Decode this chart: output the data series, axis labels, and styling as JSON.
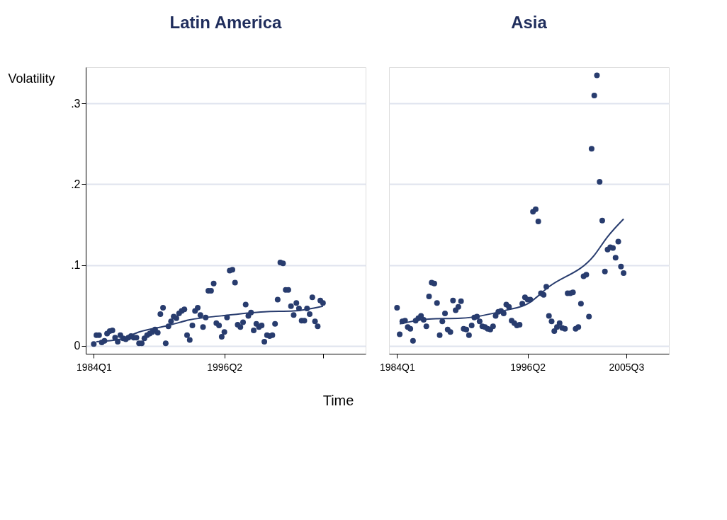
{
  "chart_data": [
    {
      "type": "scatter",
      "title": "Latin America",
      "ylabel": "Volatility",
      "xlabel": "Time",
      "marker": "circle",
      "grid": "y",
      "xlim": [
        "1983-04",
        "2009-07"
      ],
      "xticks": [
        {
          "value": "1984-01",
          "label": "1984Q1"
        },
        {
          "value": "1996-04",
          "label": "1996Q2"
        },
        {
          "value": "2005-07",
          "label": null
        }
      ],
      "ylim": [
        -0.01,
        0.345
      ],
      "yticks": [
        0,
        {
          "value": 0.1,
          "label": ".1"
        },
        {
          "value": 0.2,
          "label": ".2"
        },
        {
          "value": 0.3,
          "label": ".3"
        }
      ],
      "series": [
        {
          "color": "#283c6e",
          "x": [
            "1984-01",
            "1984-04",
            "1984-07",
            "1984-10",
            "1985-01",
            "1985-04",
            "1985-07",
            "1985-10",
            "1986-01",
            "1986-04",
            "1986-07",
            "1986-10",
            "1987-01",
            "1987-04",
            "1987-07",
            "1987-10",
            "1988-01",
            "1988-04",
            "1988-07",
            "1988-10",
            "1989-01",
            "1989-04",
            "1989-07",
            "1989-10",
            "1990-01",
            "1990-04",
            "1990-07",
            "1990-10",
            "1991-01",
            "1991-04",
            "1991-07",
            "1991-10",
            "1992-01",
            "1992-04",
            "1992-07",
            "1992-10",
            "1993-01",
            "1993-04",
            "1993-07",
            "1993-10",
            "1994-01",
            "1994-04",
            "1994-07",
            "1994-10",
            "1995-01",
            "1995-04",
            "1995-07",
            "1995-10",
            "1996-01",
            "1996-04",
            "1996-07",
            "1996-10",
            "1997-01",
            "1997-04",
            "1997-07",
            "1997-10",
            "1998-01",
            "1998-04",
            "1998-07",
            "1998-10",
            "1999-01",
            "1999-04",
            "1999-07",
            "1999-10",
            "2000-01",
            "2000-04",
            "2000-07",
            "2000-10",
            "2001-01",
            "2001-04",
            "2001-07",
            "2001-10",
            "2002-01",
            "2002-04",
            "2002-07",
            "2002-10",
            "2003-01",
            "2003-04",
            "2003-07",
            "2003-10",
            "2004-01",
            "2004-04",
            "2004-07",
            "2004-10",
            "2005-01",
            "2005-04",
            "2005-07"
          ],
          "values": [
            0.002,
            0.013,
            0.013,
            0.004,
            0.006,
            0.015,
            0.018,
            0.019,
            0.01,
            0.005,
            0.013,
            0.009,
            0.008,
            0.01,
            0.012,
            0.01,
            0.01,
            0.003,
            0.003,
            0.009,
            0.013,
            0.015,
            0.017,
            0.02,
            0.016,
            0.039,
            0.047,
            0.003,
            0.024,
            0.03,
            0.036,
            0.034,
            0.04,
            0.043,
            0.045,
            0.013,
            0.007,
            0.025,
            0.043,
            0.047,
            0.038,
            0.023,
            0.035,
            0.068,
            0.068,
            0.077,
            0.028,
            0.025,
            0.011,
            0.017,
            0.035,
            0.093,
            0.094,
            0.078,
            0.026,
            0.023,
            0.029,
            0.051,
            0.037,
            0.041,
            0.019,
            0.027,
            0.023,
            0.025,
            0.005,
            0.013,
            0.012,
            0.013,
            0.027,
            0.057,
            0.103,
            0.102,
            0.069,
            0.069,
            0.049,
            0.038,
            0.053,
            0.046,
            0.031,
            0.031,
            0.046,
            0.039,
            0.06,
            0.03,
            0.024,
            0.056,
            0.053
          ]
        },
        {
          "type": "line",
          "marker": "none",
          "color": "#283c6e",
          "x": [
            "1984-04",
            "1986-07",
            "1988-04",
            "1991-01",
            "1993-01",
            "1996-01",
            "2000-01",
            "2002-10",
            "2005-07"
          ],
          "values": [
            0.005,
            0.008,
            0.017,
            0.025,
            0.032,
            0.037,
            0.042,
            0.043,
            0.049
          ]
        }
      ]
    },
    {
      "type": "scatter",
      "title": "Asia",
      "marker": "circle",
      "grid": "y",
      "tick_labels": "x",
      "xlim": [
        "1983-04",
        "2009-07"
      ],
      "xticks": [
        {
          "value": "1984-01",
          "label": "1984Q1"
        },
        {
          "value": "1996-04",
          "label": "1996Q2"
        },
        {
          "value": "2005-07",
          "label": "2005Q3"
        }
      ],
      "ylim": [
        -0.01,
        0.345
      ],
      "yticks": [
        {
          "value": 0,
          "label": null
        },
        {
          "value": 0.1,
          "label": null
        },
        {
          "value": 0.2,
          "label": null
        },
        {
          "value": 0.3,
          "label": null
        }
      ],
      "series": [
        {
          "color": "#283c6e",
          "x": [
            "1984-01",
            "1984-04",
            "1984-07",
            "1984-10",
            "1985-01",
            "1985-04",
            "1985-07",
            "1985-10",
            "1986-01",
            "1986-04",
            "1986-07",
            "1986-10",
            "1987-01",
            "1987-04",
            "1987-07",
            "1987-10",
            "1988-01",
            "1988-04",
            "1988-07",
            "1988-10",
            "1989-01",
            "1989-04",
            "1989-07",
            "1989-10",
            "1990-01",
            "1990-04",
            "1990-07",
            "1990-10",
            "1991-01",
            "1991-04",
            "1991-07",
            "1991-10",
            "1992-01",
            "1992-04",
            "1992-07",
            "1992-10",
            "1993-01",
            "1993-04",
            "1993-07",
            "1993-10",
            "1994-01",
            "1994-04",
            "1994-07",
            "1994-10",
            "1995-01",
            "1995-04",
            "1995-07",
            "1995-10",
            "1996-01",
            "1996-04",
            "1996-07",
            "1996-10",
            "1997-01",
            "1997-04",
            "1997-07",
            "1997-10",
            "1998-01",
            "1998-04",
            "1998-07",
            "1998-10",
            "1999-01",
            "1999-04",
            "1999-07",
            "1999-10",
            "2000-01",
            "2000-04",
            "2000-07",
            "2000-10",
            "2001-01",
            "2001-04",
            "2001-07",
            "2001-10",
            "2002-01",
            "2002-04",
            "2002-07",
            "2002-10",
            "2003-01",
            "2003-04",
            "2003-07",
            "2003-10",
            "2004-01",
            "2004-04",
            "2004-07",
            "2004-10",
            "2005-01",
            "2005-04"
          ],
          "values": [
            0.047,
            0.014,
            0.03,
            0.031,
            0.023,
            0.021,
            0.006,
            0.031,
            0.034,
            0.037,
            0.032,
            0.024,
            0.061,
            0.078,
            0.077,
            0.053,
            0.013,
            0.03,
            0.04,
            0.02,
            0.017,
            0.056,
            0.044,
            0.048,
            0.055,
            0.021,
            0.02,
            0.013,
            0.025,
            0.035,
            0.036,
            0.03,
            0.024,
            0.023,
            0.021,
            0.02,
            0.024,
            0.037,
            0.042,
            0.043,
            0.04,
            0.051,
            0.048,
            0.031,
            0.028,
            0.025,
            0.026,
            0.052,
            0.06,
            0.057,
            0.057,
            0.166,
            0.169,
            0.154,
            0.065,
            0.063,
            0.073,
            0.037,
            0.03,
            0.018,
            0.023,
            0.028,
            0.022,
            0.021,
            0.065,
            0.065,
            0.066,
            0.021,
            0.023,
            0.052,
            0.086,
            0.088,
            0.036,
            0.244,
            0.31,
            0.335,
            0.203,
            0.155,
            0.092,
            0.119,
            0.122,
            0.121,
            0.109,
            0.129,
            0.098,
            0.09
          ]
        },
        {
          "type": "line",
          "marker": "none",
          "color": "#283c6e",
          "x": [
            "1984-04",
            "1987-01",
            "1990-01",
            "1994-04",
            "1996-04",
            "1998-04",
            "2002-07",
            "2003-10",
            "2005-04"
          ],
          "values": [
            0.027,
            0.033,
            0.034,
            0.044,
            0.052,
            0.073,
            0.112,
            0.135,
            0.157
          ]
        }
      ]
    }
  ]
}
